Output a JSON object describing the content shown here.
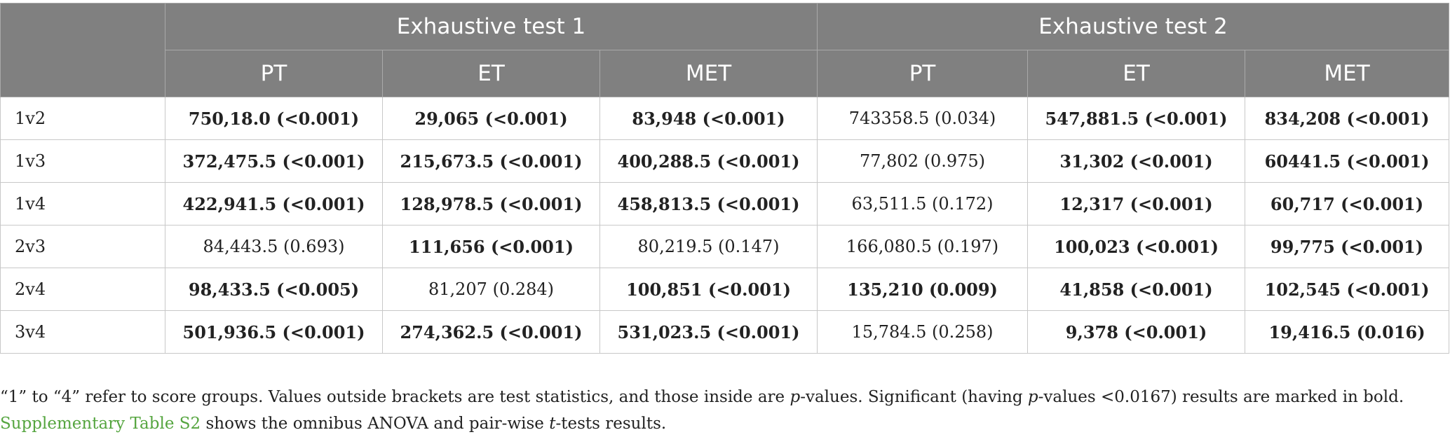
{
  "table": {
    "groups": [
      "Exhaustive test 1",
      "Exhaustive test 2"
    ],
    "columns": [
      "PT",
      "ET",
      "MET",
      "PT",
      "ET",
      "MET"
    ],
    "rows": [
      {
        "label": "1v2",
        "cells": [
          {
            "text": "750,18.0 (<0.001)",
            "bold": true
          },
          {
            "text": "29,065 (<0.001)",
            "bold": true
          },
          {
            "text": "83,948 (<0.001)",
            "bold": true
          },
          {
            "text": "743358.5 (0.034)",
            "bold": false
          },
          {
            "text": "547,881.5 (<0.001)",
            "bold": true
          },
          {
            "text": "834,208 (<0.001)",
            "bold": true
          }
        ]
      },
      {
        "label": "1v3",
        "cells": [
          {
            "text": "372,475.5 (<0.001)",
            "bold": true
          },
          {
            "text": "215,673.5 (<0.001)",
            "bold": true
          },
          {
            "text": "400,288.5 (<0.001)",
            "bold": true
          },
          {
            "text": "77,802 (0.975)",
            "bold": false
          },
          {
            "text": "31,302 (<0.001)",
            "bold": true
          },
          {
            "text": "60441.5 (<0.001)",
            "bold": true
          }
        ]
      },
      {
        "label": "1v4",
        "cells": [
          {
            "text": "422,941.5 (<0.001)",
            "bold": true
          },
          {
            "text": "128,978.5 (<0.001)",
            "bold": true
          },
          {
            "text": "458,813.5 (<0.001)",
            "bold": true
          },
          {
            "text": "63,511.5 (0.172)",
            "bold": false
          },
          {
            "text": "12,317 (<0.001)",
            "bold": true
          },
          {
            "text": "60,717 (<0.001)",
            "bold": true
          }
        ]
      },
      {
        "label": "2v3",
        "cells": [
          {
            "text": "84,443.5 (0.693)",
            "bold": false
          },
          {
            "text": "111,656 (<0.001)",
            "bold": true
          },
          {
            "text": "80,219.5 (0.147)",
            "bold": false
          },
          {
            "text": "166,080.5 (0.197)",
            "bold": false
          },
          {
            "text": "100,023 (<0.001)",
            "bold": true
          },
          {
            "text": "99,775 (<0.001)",
            "bold": true
          }
        ]
      },
      {
        "label": "2v4",
        "cells": [
          {
            "text": "98,433.5 (<0.005)",
            "bold": true
          },
          {
            "text": "81,207 (0.284)",
            "bold": false
          },
          {
            "text": "100,851 (<0.001)",
            "bold": true
          },
          {
            "text": "135,210 (0.009)",
            "bold": true
          },
          {
            "text": "41,858 (<0.001)",
            "bold": true
          },
          {
            "text": "102,545 (<0.001)",
            "bold": true
          }
        ]
      },
      {
        "label": "3v4",
        "cells": [
          {
            "text": "501,936.5 (<0.001)",
            "bold": true
          },
          {
            "text": "274,362.5 (<0.001)",
            "bold": true
          },
          {
            "text": "531,023.5 (<0.001)",
            "bold": true
          },
          {
            "text": "15,784.5 (0.258)",
            "bold": false
          },
          {
            "text": "9,378 (<0.001)",
            "bold": true
          },
          {
            "text": "19,416.5 (0.016)",
            "bold": true
          }
        ]
      }
    ]
  },
  "footnote": {
    "line1_part1": "“1” to “4” refer to score groups. Values outside brackets are test statistics, and those inside are ",
    "p_italic_1": "p",
    "line1_part2": "-values. Significant (having ",
    "p_italic_2": "p",
    "line1_part3": "-values <0.0167) results are marked in bold.",
    "link_text": "Supplementary Table S2",
    "line2_part1": " shows the omnibus ANOVA and pair-wise ",
    "t_italic": "t",
    "line2_part2": "-tests results."
  },
  "colors": {
    "header_bg": "#808080",
    "header_text": "#ffffff",
    "link": "#55a53f"
  }
}
